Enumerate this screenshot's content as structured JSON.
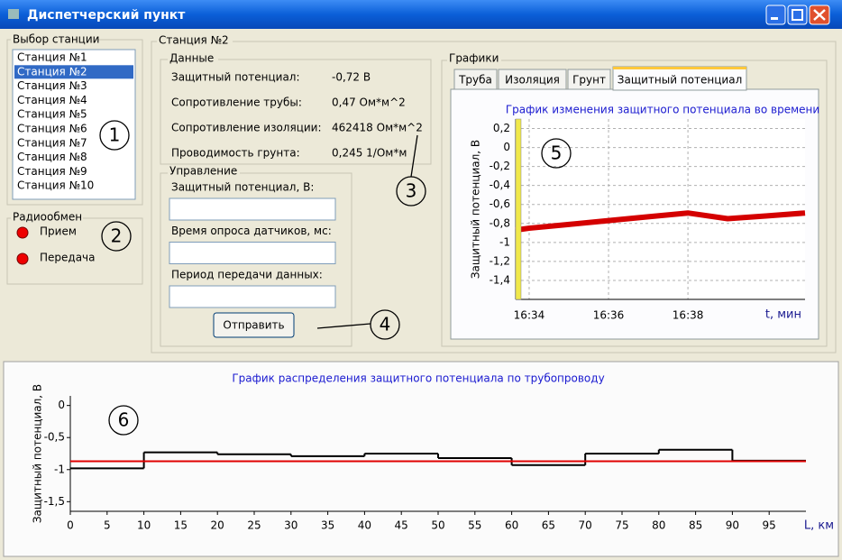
{
  "window": {
    "title": "Диспетчерский пункт"
  },
  "station_select": {
    "title": "Выбор станции",
    "items": [
      "Станция №1",
      "Станция №2",
      "Станция №3",
      "Станция №4",
      "Станция №5",
      "Станция №6",
      "Станция №7",
      "Станция №8",
      "Станция №9",
      "Станция №10"
    ],
    "selected": 1
  },
  "radio": {
    "title": "Радиообмен",
    "indicators": [
      "Прием",
      "Передача"
    ]
  },
  "station": {
    "title": "Станция №2",
    "data": {
      "title": "Данные",
      "rows": [
        [
          "Защитный потенциал:",
          "-0,72 В"
        ],
        [
          "Сопротивление трубы:",
          "0,47 Ом*м^2"
        ],
        [
          "Сопротивление изоляции:",
          "462418 Ом*м^2"
        ],
        [
          "Проводимость грунта:",
          "0,245 1/Ом*м"
        ]
      ]
    },
    "control": {
      "title": "Управление",
      "fields": [
        "Защитный потенциал, В:",
        "Время опроса датчиков, мс:",
        "Период передачи данных:"
      ],
      "button": "Отправить"
    }
  },
  "graphs": {
    "title": "Графики",
    "tabs": [
      "Труба",
      "Изоляция",
      "Грунт",
      "Защитный потенциал"
    ],
    "active_tab": 3
  },
  "callouts": [
    "1",
    "2",
    "3",
    "4",
    "5",
    "6"
  ],
  "chart_data": [
    {
      "type": "line",
      "title": "График изменения защитного потенциала во времени",
      "x_label": "t, мин",
      "y_label": "Защитный потенциал, В",
      "xlim": [
        993.66,
        1000.95
      ],
      "ylim": [
        -1.6,
        0.3
      ],
      "xticks": [
        {
          "value": 994,
          "label": "16:34"
        },
        {
          "value": 996,
          "label": "16:36"
        },
        {
          "value": 998,
          "label": "16:38"
        }
      ],
      "yticks": [
        {
          "value": 0.2,
          "label": "0,2"
        },
        0,
        {
          "value": -0.2,
          "label": "-0,2"
        },
        {
          "value": -0.4,
          "label": "-0,4"
        },
        {
          "value": -0.6,
          "label": "-0,6"
        },
        {
          "value": -0.8,
          "label": "-0,8"
        },
        -1,
        {
          "value": -1.2,
          "label": "-1,2"
        },
        {
          "value": -1.4,
          "label": "-1,4"
        }
      ],
      "grid": true,
      "series": [
        {
          "color": "#d40000",
          "x": [
            993.66,
            994,
            995,
            996,
            997,
            998,
            999,
            1000,
            1000.95
          ],
          "values": [
            -0.87,
            -0.85,
            -0.81,
            -0.77,
            -0.73,
            -0.69,
            -0.75,
            -0.72,
            -0.69
          ]
        }
      ]
    },
    {
      "type": "line",
      "title": "График распределения защитного потенциала по трубопроводу",
      "x_label": "L, км",
      "y_label": "Защитный потенциал, В",
      "xlim": [
        0,
        100
      ],
      "ylim": [
        -1.65,
        0.15
      ],
      "xticks": [
        0,
        5,
        10,
        15,
        20,
        25,
        30,
        35,
        40,
        45,
        50,
        55,
        60,
        65,
        70,
        75,
        80,
        85,
        90,
        95
      ],
      "yticks": [
        0,
        {
          "value": -0.5,
          "label": "-0,5"
        },
        -1,
        {
          "value": -1.5,
          "label": "-1,5"
        }
      ],
      "grid": false,
      "series": [
        {
          "color": "#000000",
          "bins": [
            0,
            10,
            20,
            30,
            40,
            50,
            60,
            70,
            80,
            90,
            100
          ],
          "values": [
            -0.98,
            -0.73,
            -0.76,
            -0.79,
            -0.75,
            -0.82,
            -0.93,
            -0.75,
            -0.69,
            -0.86
          ]
        },
        {
          "color": "#e00000",
          "x": [
            0,
            100
          ],
          "values": [
            -0.87,
            -0.87
          ]
        }
      ]
    }
  ]
}
